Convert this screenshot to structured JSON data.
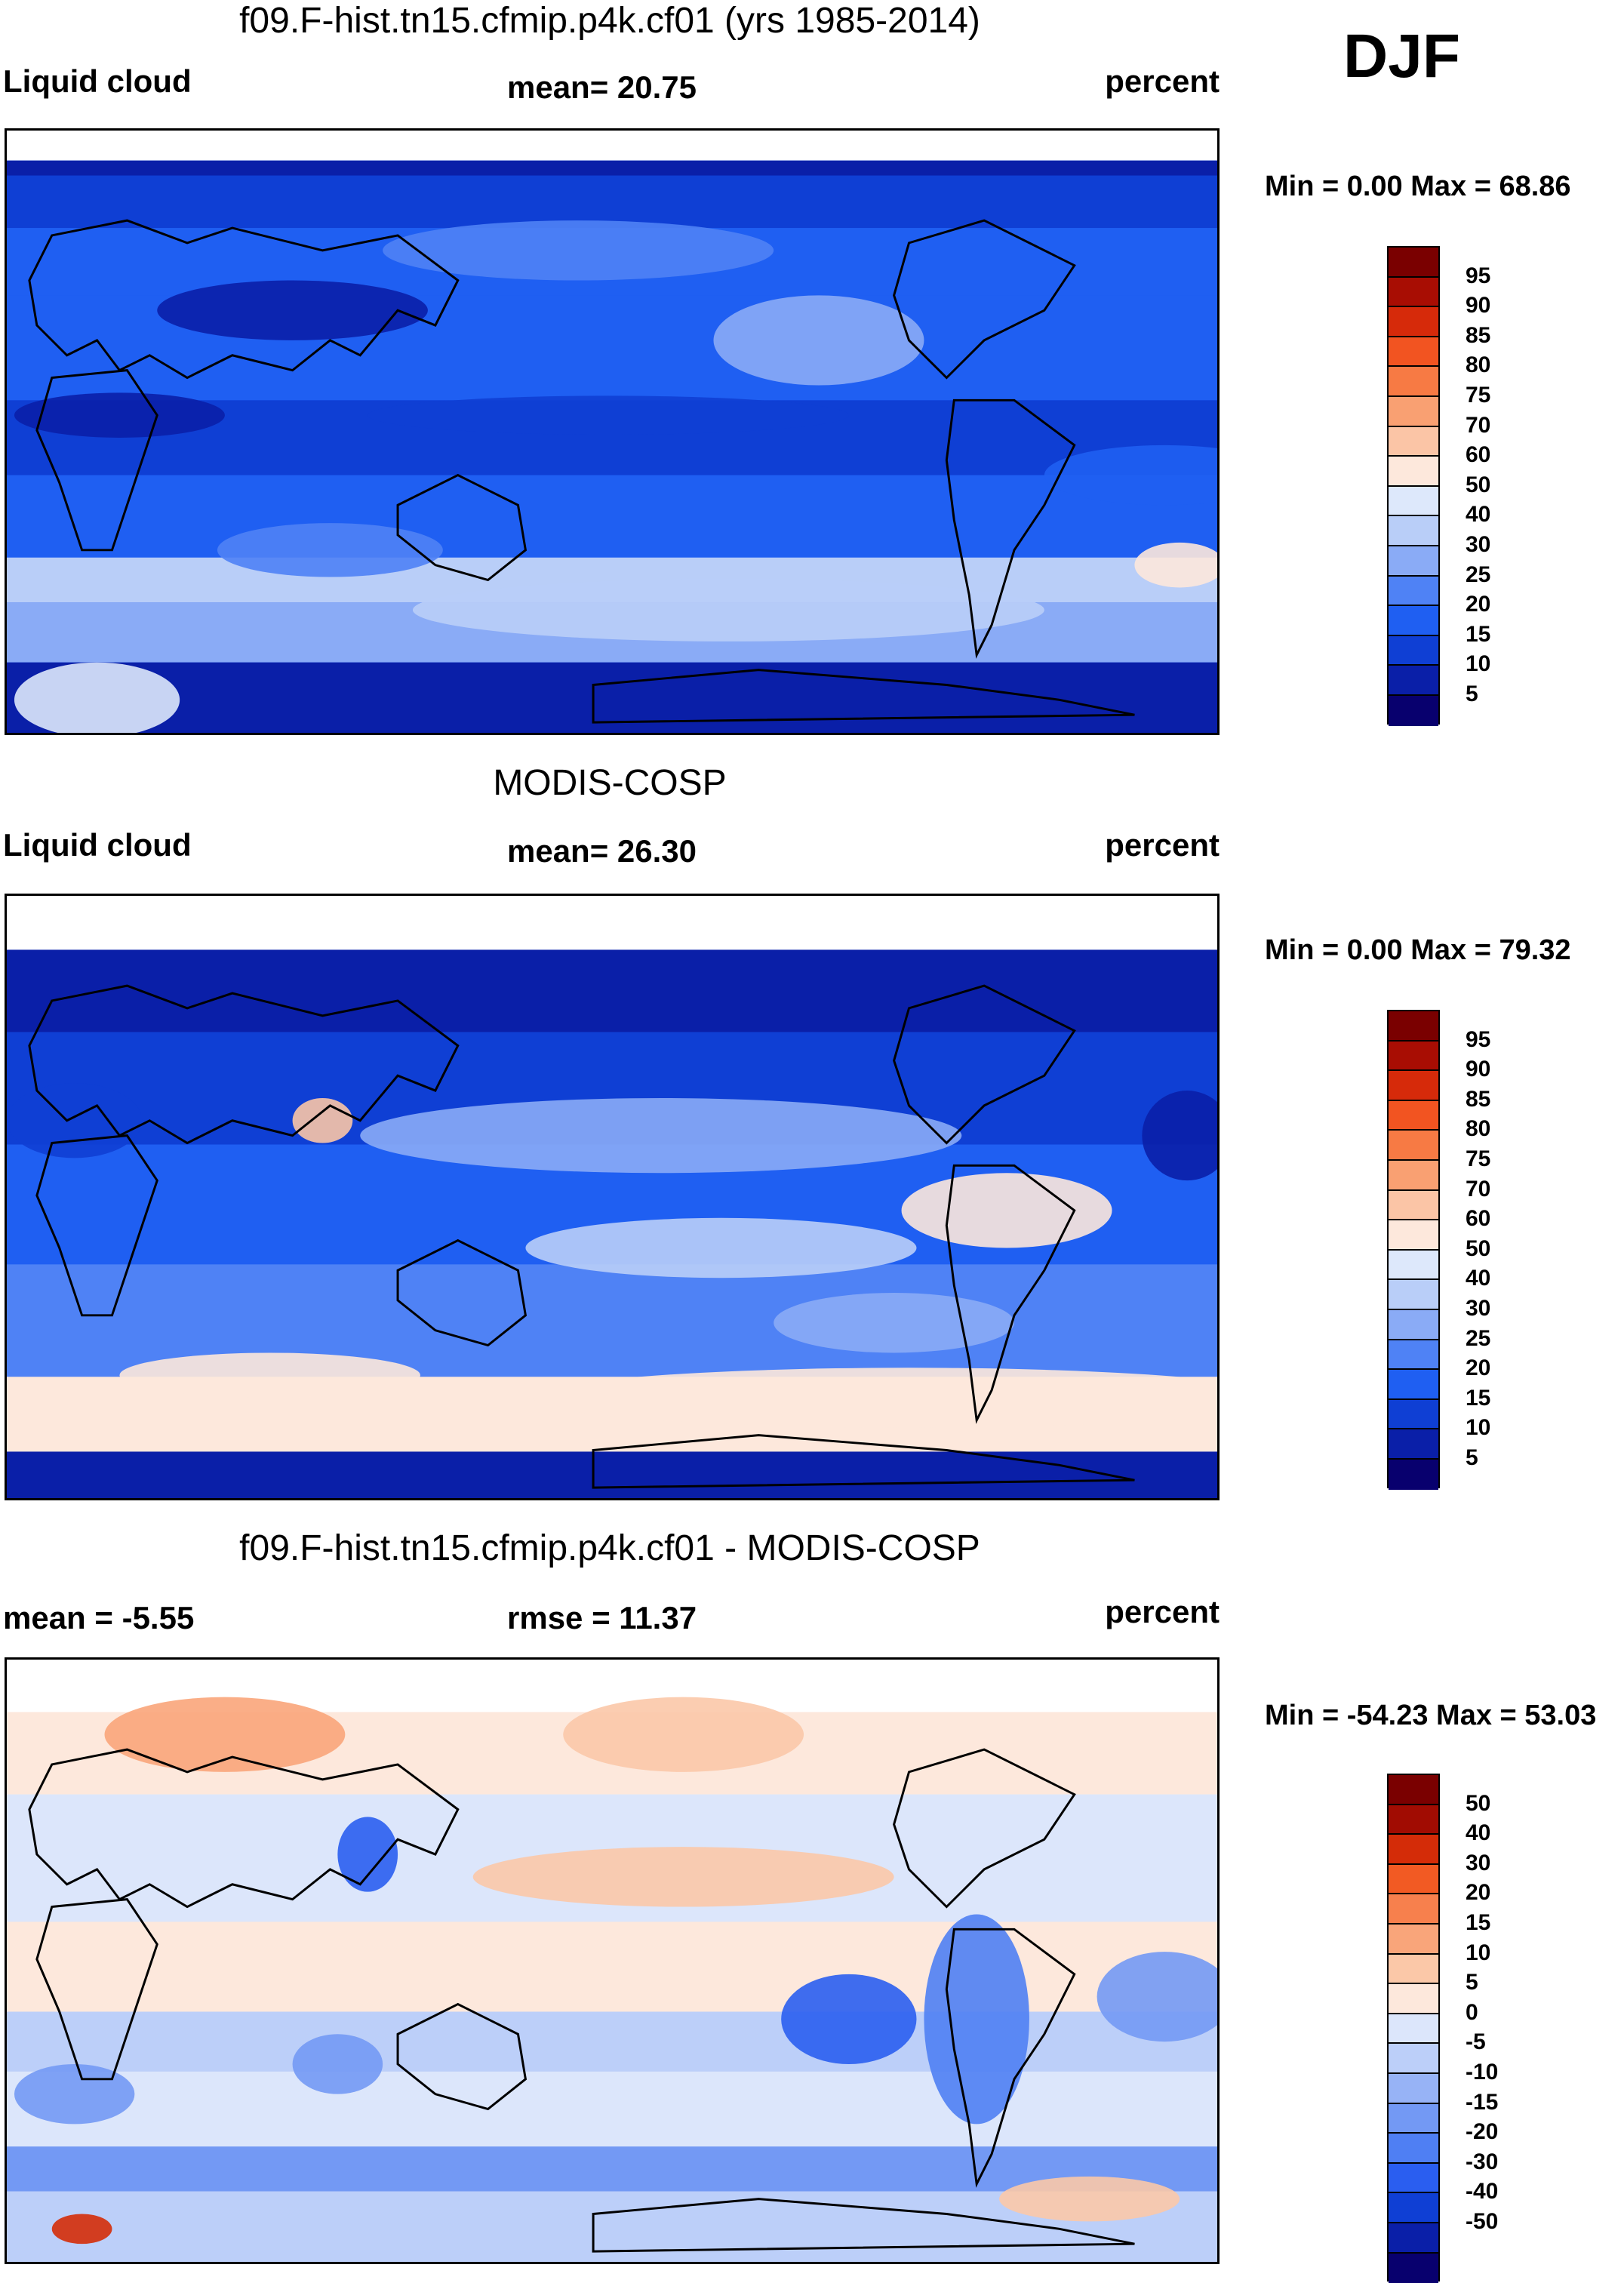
{
  "season": "DJF",
  "colors": {
    "seq": [
      "#08006e",
      "#0a1fa8",
      "#0f3fd4",
      "#1f5ff2",
      "#4f82f5",
      "#8aabf6",
      "#b9cef8",
      "#dde8fb",
      "#fde8dc",
      "#fbc5a6",
      "#f9a072",
      "#f77a44",
      "#f25421",
      "#d62a0a",
      "#a80d03",
      "#7a0000"
    ],
    "div": [
      "#08006e",
      "#0a1fa8",
      "#0f3fd4",
      "#2a5ef0",
      "#4f7ff3",
      "#7399f4",
      "#97b3f6",
      "#bccff9",
      "#dce6fb",
      "#fde8dc",
      "#fbc8a8",
      "#f9a57a",
      "#f7804d",
      "#f25a23",
      "#d42c08",
      "#a10c02",
      "#7a0000"
    ]
  },
  "panels": [
    {
      "title": "f09.F-hist.tn15.cfmip.p4k.cf01 (yrs 1985-2014)",
      "left_label": "Liquid cloud",
      "center_label": "mean=  20.75",
      "right_label": "percent",
      "minmax": "Min =   0.00 Max =  68.86",
      "levels": [
        "95",
        "90",
        "85",
        "80",
        "75",
        "70",
        "60",
        "50",
        "40",
        "30",
        "25",
        "20",
        "15",
        "10",
        "5"
      ],
      "palette": "seq",
      "map_kind": "model"
    },
    {
      "title": "MODIS-COSP",
      "left_label": "Liquid cloud",
      "center_label": "mean=  26.30",
      "right_label": "percent",
      "minmax": "Min =   0.00 Max =  79.32",
      "levels": [
        "95",
        "90",
        "85",
        "80",
        "75",
        "70",
        "60",
        "50",
        "40",
        "30",
        "25",
        "20",
        "15",
        "10",
        "5"
      ],
      "palette": "seq",
      "map_kind": "obs"
    },
    {
      "title": "f09.F-hist.tn15.cfmip.p4k.cf01 - MODIS-COSP",
      "left_label": "mean =  -5.55",
      "center_label": "rmse =  11.37",
      "right_label": "percent",
      "minmax": "Min = -54.23 Max =  53.03",
      "levels": [
        "50",
        "40",
        "30",
        "20",
        "15",
        "10",
        "5",
        "0",
        "-5",
        "-10",
        "-15",
        "-20",
        "-30",
        "-40",
        "-50"
      ],
      "palette": "div",
      "map_kind": "diff"
    }
  ]
}
